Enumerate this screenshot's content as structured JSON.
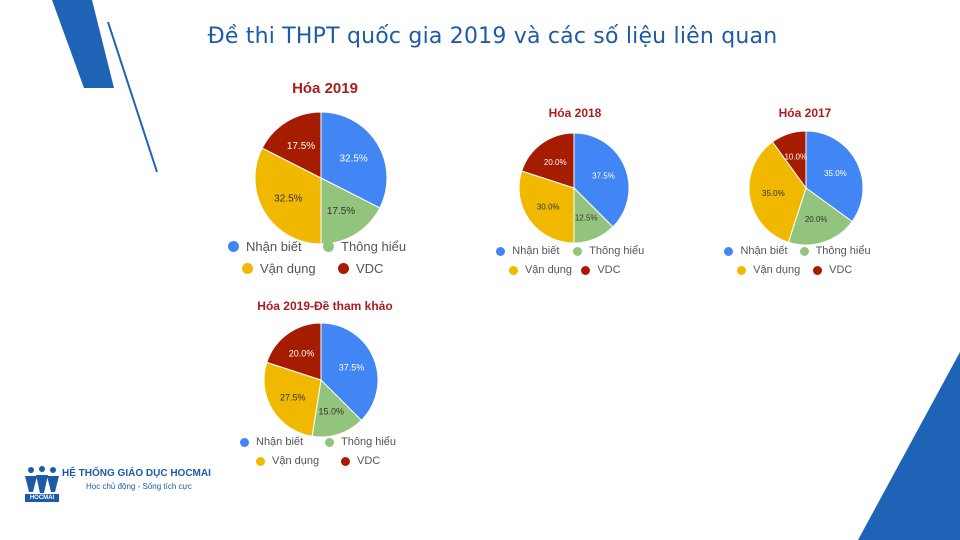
{
  "header": {
    "title": "Đề thi THPT quốc gia 2019 và các số liệu liên quan"
  },
  "branding": {
    "name": "HỆ THỐNG GIÁO DỤC HOCMAI",
    "slogan": "Học chủ động - Sống tích cực",
    "logo_word": "HOCMAI"
  },
  "theme": {
    "accent": "#1d5aa8",
    "title_red": "#a81e1e"
  },
  "legend_labels": [
    "Nhận biết",
    "Thông hiểu",
    "Vận dụng",
    "VDC"
  ],
  "slice_colors": [
    "#4285f4",
    "#93c47d",
    "#f1b800",
    "#a61c00"
  ],
  "chart_data": [
    {
      "type": "pie",
      "title": "Hóa 2019",
      "categories": [
        "Nhận biết",
        "Thông hiểu",
        "Vận dụng",
        "VDC"
      ],
      "values": [
        32.5,
        17.5,
        32.5,
        17.5
      ],
      "labels": [
        "32.5%",
        "17.5%",
        "32.5%",
        "17.5%"
      ],
      "legend": "bottom"
    },
    {
      "type": "pie",
      "title": "Hóa 2018",
      "categories": [
        "Nhận biết",
        "Thông hiểu",
        "Vận dụng",
        "VDC"
      ],
      "values": [
        37.5,
        12.5,
        30.0,
        20.0
      ],
      "labels": [
        "37.5%",
        "12.5%",
        "30.0%",
        "20.0%"
      ],
      "legend": "bottom"
    },
    {
      "type": "pie",
      "title": "Hóa 2017",
      "categories": [
        "Nhận biết",
        "Thông hiểu",
        "Vận dụng",
        "VDC"
      ],
      "values": [
        35.0,
        20.0,
        35.0,
        10.0
      ],
      "labels": [
        "35.0%",
        "20.0%",
        "35.0%",
        "10.0%"
      ],
      "legend": "bottom"
    },
    {
      "type": "pie",
      "title": "Hóa 2019-Đề tham khảo",
      "categories": [
        "Nhận biết",
        "Thông hiểu",
        "Vận dụng",
        "VDC"
      ],
      "values": [
        37.5,
        15.0,
        27.5,
        20.0
      ],
      "labels": [
        "37.5%",
        "15.0%",
        "27.5%",
        "20.0%"
      ],
      "legend": "bottom"
    }
  ]
}
